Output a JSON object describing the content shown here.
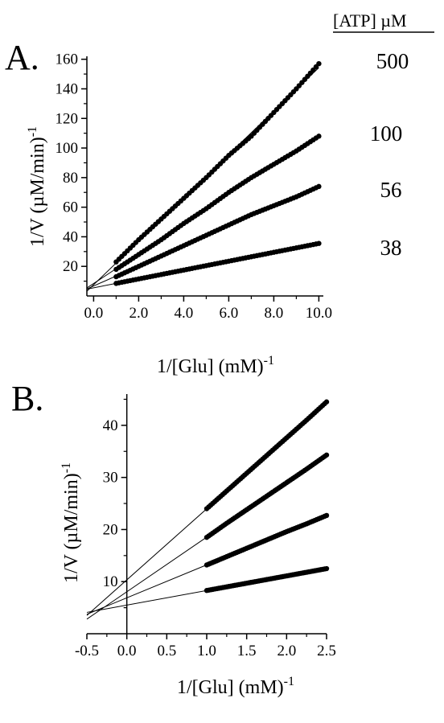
{
  "legend_header": "[ATP] µM",
  "chart_data": [
    {
      "panel_label": "A.",
      "type": "line",
      "xlabel": "1/[Glu]  (mM)",
      "xlabel_sup": "-1",
      "ylabel": "1/V (µM/min)",
      "ylabel_sup": "-1",
      "xlim": [
        -0.3,
        10.2
      ],
      "ylim": [
        0,
        162
      ],
      "x_ticks": [
        "0.0",
        "2.0",
        "4.0",
        "6.0",
        "8.0",
        "10.0"
      ],
      "y_ticks": [
        "20",
        "40",
        "60",
        "80",
        "100",
        "120",
        "140",
        "160"
      ],
      "series": [
        {
          "name": "500",
          "x": [
            1.0,
            2.0,
            3.0,
            4.0,
            5.0,
            6.0,
            7.0,
            8.0,
            9.0,
            10.0
          ],
          "y": [
            23,
            38,
            52,
            66,
            80,
            95,
            108,
            124,
            140,
            157
          ]
        },
        {
          "name": "100",
          "x": [
            1.0,
            2.0,
            3.0,
            4.0,
            5.0,
            6.0,
            7.0,
            8.0,
            9.0,
            10.0
          ],
          "y": [
            18,
            28,
            38,
            49,
            59,
            70,
            80,
            89,
            98,
            108
          ]
        },
        {
          "name": "56",
          "x": [
            1.0,
            2.0,
            3.0,
            4.0,
            5.0,
            6.0,
            7.0,
            8.0,
            9.0,
            10.0
          ],
          "y": [
            13,
            20,
            27,
            34,
            41,
            48,
            55,
            61,
            67,
            74
          ]
        },
        {
          "name": "38",
          "x": [
            1.0,
            2.0,
            3.0,
            4.0,
            5.0,
            6.0,
            7.0,
            8.0,
            9.0,
            10.0
          ],
          "y": [
            8.5,
            11.5,
            14.5,
            17.5,
            20.5,
            23.5,
            26.5,
            29.5,
            32.5,
            35.5
          ]
        }
      ]
    },
    {
      "panel_label": "B.",
      "type": "line",
      "xlabel": "1/[Glu]  (mM)",
      "xlabel_sup": "-1",
      "ylabel": "1/V (µM/min)",
      "ylabel_sup": "-1",
      "xlim": [
        -0.5,
        2.5
      ],
      "ylim": [
        0,
        46
      ],
      "x_ticks": [
        "-0.5",
        "0.0",
        "0.5",
        "1.0",
        "1.5",
        "2.0",
        "2.5"
      ],
      "y_ticks": [
        "10",
        "20",
        "30",
        "40"
      ],
      "series": [
        {
          "name": "500",
          "x": [
            1.0,
            1.25,
            1.5,
            1.75,
            2.0,
            2.25,
            2.5
          ],
          "y": [
            24,
            27.4,
            30.8,
            34.2,
            37.6,
            41.0,
            44.5
          ]
        },
        {
          "name": "100",
          "x": [
            1.0,
            1.25,
            1.5,
            1.75,
            2.0,
            2.25,
            2.5
          ],
          "y": [
            18.5,
            21.2,
            23.8,
            26.4,
            29.0,
            31.6,
            34.3
          ]
        },
        {
          "name": "56",
          "x": [
            1.0,
            1.25,
            1.5,
            1.75,
            2.0,
            2.25,
            2.5
          ],
          "y": [
            13.2,
            14.8,
            16.4,
            18.0,
            19.6,
            21.1,
            22.7
          ]
        },
        {
          "name": "38",
          "x": [
            1.0,
            1.25,
            1.5,
            1.75,
            2.0,
            2.25,
            2.5
          ],
          "y": [
            8.3,
            9.0,
            9.7,
            10.4,
            11.1,
            11.8,
            12.5
          ]
        }
      ]
    }
  ]
}
